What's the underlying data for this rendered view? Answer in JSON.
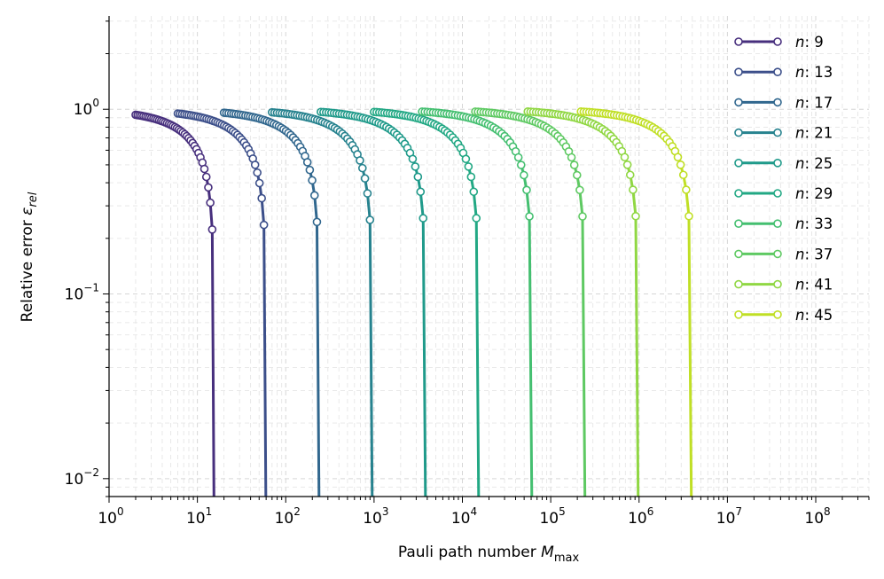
{
  "chart_data": {
    "type": "line",
    "title": "",
    "xlabel": "Pauli path number M_max",
    "ylabel": "Relative error ε_rel",
    "xscale": "log",
    "yscale": "log",
    "xlim": [
      1,
      400000000
    ],
    "ylim": [
      0.008,
      3.2
    ],
    "grid": true,
    "legend_position": "top-right",
    "x_ticks": [
      {
        "base": "10",
        "exp": "0"
      },
      {
        "base": "10",
        "exp": "1"
      },
      {
        "base": "10",
        "exp": "2"
      },
      {
        "base": "10",
        "exp": "3"
      },
      {
        "base": "10",
        "exp": "4"
      },
      {
        "base": "10",
        "exp": "5"
      },
      {
        "base": "10",
        "exp": "6"
      },
      {
        "base": "10",
        "exp": "7"
      },
      {
        "base": "10",
        "exp": "8"
      }
    ],
    "y_ticks": [
      {
        "base": "10",
        "exp": "0"
      },
      {
        "base": "10",
        "exp": "−1"
      },
      {
        "base": "10",
        "exp": "−2"
      }
    ],
    "series": [
      {
        "label": "n: 9",
        "n": 9,
        "color": "#472f7d",
        "start_x": 2,
        "x_max": 15.5
      },
      {
        "label": "n: 13",
        "n": 13,
        "color": "#3c4f8a",
        "start_x": 6,
        "x_max": 60
      },
      {
        "label": "n: 17",
        "n": 17,
        "color": "#31678e",
        "start_x": 20,
        "x_max": 240
      },
      {
        "label": "n: 21",
        "n": 21,
        "color": "#26828e",
        "start_x": 70,
        "x_max": 960
      },
      {
        "label": "n: 25",
        "n": 25,
        "color": "#1f9a8a",
        "start_x": 250,
        "x_max": 3850
      },
      {
        "label": "n: 29",
        "n": 29,
        "color": "#22a884",
        "start_x": 1000,
        "x_max": 15400
      },
      {
        "label": "n: 33",
        "n": 33,
        "color": "#44bf70",
        "start_x": 3500,
        "x_max": 61600
      },
      {
        "label": "n: 37",
        "n": 37,
        "color": "#5ec962",
        "start_x": 14000,
        "x_max": 246000
      },
      {
        "label": "n: 41",
        "n": 41,
        "color": "#90d743",
        "start_x": 55000,
        "x_max": 985000
      },
      {
        "label": "n: 45",
        "n": 45,
        "color": "#c0df25",
        "start_x": 220000,
        "x_max": 3940000
      }
    ]
  }
}
